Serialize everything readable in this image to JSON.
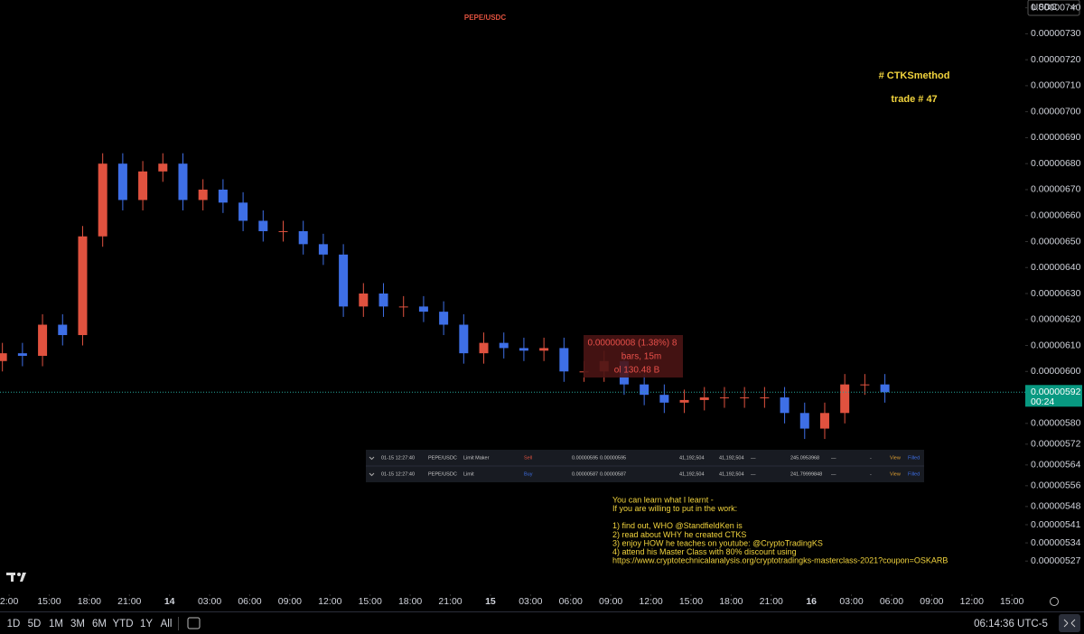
{
  "chart_data": {
    "type": "candlestick",
    "title": "PEPE/USDC",
    "currency": "USDC",
    "up_color": "#e0523f",
    "down_color": "#3e6fe6",
    "x": [
      -0.5,
      1,
      2.5,
      4,
      5.5,
      7,
      8.5,
      10,
      11.5,
      13,
      14.5,
      16,
      17.5,
      19,
      20.5,
      22,
      23.5,
      25,
      26.5,
      28,
      29.5,
      31,
      32.5,
      34,
      35.5,
      37,
      38.5,
      40,
      41.5,
      43,
      44.5,
      46,
      47.5,
      49,
      50.5,
      52,
      53.5,
      55,
      56.5,
      58,
      59.5,
      61,
      62.5,
      64,
      65.5
    ],
    "open": [
      6.04e-06,
      6.07e-06,
      6.06e-06,
      6.18e-06,
      6.14e-06,
      6.52e-06,
      6.8e-06,
      6.66e-06,
      6.77e-06,
      6.8e-06,
      6.66e-06,
      6.7e-06,
      6.65e-06,
      6.58e-06,
      6.54e-06,
      6.54e-06,
      6.49e-06,
      6.45e-06,
      6.25e-06,
      6.3e-06,
      6.25e-06,
      6.25e-06,
      6.23e-06,
      6.18e-06,
      6.07e-06,
      6.11e-06,
      6.09e-06,
      6.08e-06,
      6.09e-06,
      6e-06,
      6e-06,
      6.04e-06,
      5.95e-06,
      5.91e-06,
      5.88e-06,
      5.89e-06,
      5.9e-06,
      5.9e-06,
      5.9e-06,
      5.9e-06,
      5.84e-06,
      5.78e-06,
      5.84e-06,
      5.95e-06,
      5.95e-06
    ],
    "high": [
      6.11e-06,
      6.11e-06,
      6.22e-06,
      6.22e-06,
      6.56e-06,
      6.84e-06,
      6.84e-06,
      6.81e-06,
      6.84e-06,
      6.84e-06,
      6.74e-06,
      6.74e-06,
      6.69e-06,
      6.62e-06,
      6.58e-06,
      6.58e-06,
      6.53e-06,
      6.49e-06,
      6.34e-06,
      6.34e-06,
      6.29e-06,
      6.29e-06,
      6.27e-06,
      6.22e-06,
      6.15e-06,
      6.15e-06,
      6.13e-06,
      6.13e-06,
      6.13e-06,
      6.04e-06,
      6.08e-06,
      6.08e-06,
      5.99e-06,
      5.95e-06,
      5.93e-06,
      5.94e-06,
      5.94e-06,
      5.94e-06,
      5.94e-06,
      5.94e-06,
      5.88e-06,
      5.88e-06,
      5.99e-06,
      5.99e-06,
      5.99e-06
    ],
    "low": [
      6e-06,
      6.02e-06,
      6.02e-06,
      6.1e-06,
      6.1e-06,
      6.48e-06,
      6.62e-06,
      6.62e-06,
      6.73e-06,
      6.62e-06,
      6.62e-06,
      6.61e-06,
      6.54e-06,
      6.5e-06,
      6.5e-06,
      6.45e-06,
      6.41e-06,
      6.21e-06,
      6.21e-06,
      6.21e-06,
      6.21e-06,
      6.19e-06,
      6.14e-06,
      6.03e-06,
      6.03e-06,
      6.05e-06,
      6.04e-06,
      6.04e-06,
      5.96e-06,
      5.96e-06,
      5.96e-06,
      5.91e-06,
      5.87e-06,
      5.84e-06,
      5.84e-06,
      5.85e-06,
      5.86e-06,
      5.86e-06,
      5.86e-06,
      5.8e-06,
      5.74e-06,
      5.74e-06,
      5.8e-06,
      5.91e-06,
      5.88e-06
    ],
    "close": [
      6.07e-06,
      6.06e-06,
      6.18e-06,
      6.14e-06,
      6.52e-06,
      6.8e-06,
      6.66e-06,
      6.77e-06,
      6.8e-06,
      6.66e-06,
      6.7e-06,
      6.65e-06,
      6.58e-06,
      6.54e-06,
      6.54e-06,
      6.49e-06,
      6.45e-06,
      6.25e-06,
      6.3e-06,
      6.25e-06,
      6.25e-06,
      6.23e-06,
      6.18e-06,
      6.07e-06,
      6.11e-06,
      6.09e-06,
      6.08e-06,
      6.09e-06,
      6e-06,
      6e-06,
      6.04e-06,
      5.95e-06,
      5.91e-06,
      5.88e-06,
      5.89e-06,
      5.9e-06,
      5.9e-06,
      5.9e-06,
      5.9e-06,
      5.84e-06,
      5.78e-06,
      5.84e-06,
      5.95e-06,
      5.95e-06,
      5.92e-06
    ],
    "xlim": [
      -0.68,
      76.0
    ],
    "xticks": [
      {
        "value": 0,
        "label": "2:00"
      },
      {
        "value": 3,
        "label": "15:00"
      },
      {
        "value": 6,
        "label": "18:00"
      },
      {
        "value": 9,
        "label": "21:00"
      },
      {
        "value": 12,
        "label": "14"
      },
      {
        "value": 15,
        "label": "03:00"
      },
      {
        "value": 18,
        "label": "06:00"
      },
      {
        "value": 21,
        "label": "09:00"
      },
      {
        "value": 24,
        "label": "12:00"
      },
      {
        "value": 27,
        "label": "15:00"
      },
      {
        "value": 30,
        "label": "18:00"
      },
      {
        "value": 33,
        "label": "21:00"
      },
      {
        "value": 36,
        "label": "15"
      },
      {
        "value": 39,
        "label": "03:00"
      },
      {
        "value": 42,
        "label": "06:00"
      },
      {
        "value": 45,
        "label": "09:00"
      },
      {
        "value": 48,
        "label": "12:00"
      },
      {
        "value": 51,
        "label": "15:00"
      },
      {
        "value": 54,
        "label": "18:00"
      },
      {
        "value": 57,
        "label": "21:00"
      },
      {
        "value": 60,
        "label": "16"
      },
      {
        "value": 63,
        "label": "03:00"
      },
      {
        "value": 66,
        "label": "06:00"
      },
      {
        "value": 69,
        "label": "09:00"
      },
      {
        "value": 72,
        "label": "12:00"
      },
      {
        "value": 75,
        "label": "15:00"
      }
    ],
    "ylim": [
      5.17e-06,
      7.43e-06
    ],
    "yticks": [
      {
        "value": 7.4e-06,
        "label": "0.00000740"
      },
      {
        "value": 7.3e-06,
        "label": "0.00000730"
      },
      {
        "value": 7.2e-06,
        "label": "0.00000720"
      },
      {
        "value": 7.1e-06,
        "label": "0.00000710"
      },
      {
        "value": 7e-06,
        "label": "0.00000700"
      },
      {
        "value": 6.9e-06,
        "label": "0.00000690"
      },
      {
        "value": 6.8e-06,
        "label": "0.00000680"
      },
      {
        "value": 6.7e-06,
        "label": "0.00000670"
      },
      {
        "value": 6.6e-06,
        "label": "0.00000660"
      },
      {
        "value": 6.5e-06,
        "label": "0.00000650"
      },
      {
        "value": 6.4e-06,
        "label": "0.00000640"
      },
      {
        "value": 6.3e-06,
        "label": "0.00000630"
      },
      {
        "value": 6.2e-06,
        "label": "0.00000620"
      },
      {
        "value": 6.1e-06,
        "label": "0.00000610"
      },
      {
        "value": 6e-06,
        "label": "0.00000600"
      },
      {
        "value": 5.8e-06,
        "label": "0.00000580"
      },
      {
        "value": 5.72e-06,
        "label": "0.00000572"
      },
      {
        "value": 5.64e-06,
        "label": "0.00000564"
      },
      {
        "value": 5.56e-06,
        "label": "0.00000556"
      },
      {
        "value": 5.48e-06,
        "label": "0.00000548"
      },
      {
        "value": 5.41e-06,
        "label": "0.00000541"
      },
      {
        "value": 5.34e-06,
        "label": "0.00000534"
      },
      {
        "value": 5.27e-06,
        "label": "0.00000527"
      }
    ],
    "last_price": 5.92e-06,
    "countdown": "00:24",
    "annotations": [
      "# CTKSmethod",
      "trade # 47"
    ],
    "measure": [
      "0.00000008 (1.38%) 8",
      "bars, 15m",
      "ol 130.48 B"
    ]
  },
  "orders": [
    [
      "01-15 12:27:40",
      "PEPE/USDC",
      "Limit Maker",
      "Sell",
      "0.00000595",
      "0.00000595",
      "41,192,504",
      "41,192,504",
      "—",
      "245.0953968",
      "—",
      "-",
      "View",
      "Filled"
    ],
    [
      "01-15 12:27:40",
      "PEPE/USDC",
      "Limit",
      "Buy",
      "0.00000587",
      "0.00000587",
      "41,192,504",
      "41,192,504",
      "—",
      "241.79999848",
      "—",
      "-",
      "View",
      "Filled"
    ]
  ],
  "notes": [
    "You can learn what I learnt -",
    "If you are willing to put in the work:",
    "1) find out, WHO @StandfieldKen is",
    "2) read about WHY he created CTKS",
    "3) enjoy HOW he teaches on youtube: @CryptoTradingKS",
    "4) attend his Master Class with 80% discount using",
    "https://www.cryptotechnicalanalysis.org/cryptotradingks-masterclass-2021?coupon=OSKARB"
  ],
  "toolbar": {
    "ranges": [
      "1D",
      "5D",
      "1M",
      "3M",
      "6M",
      "YTD",
      "1Y",
      "All"
    ],
    "clock": "06:14:36 UTC-5"
  }
}
